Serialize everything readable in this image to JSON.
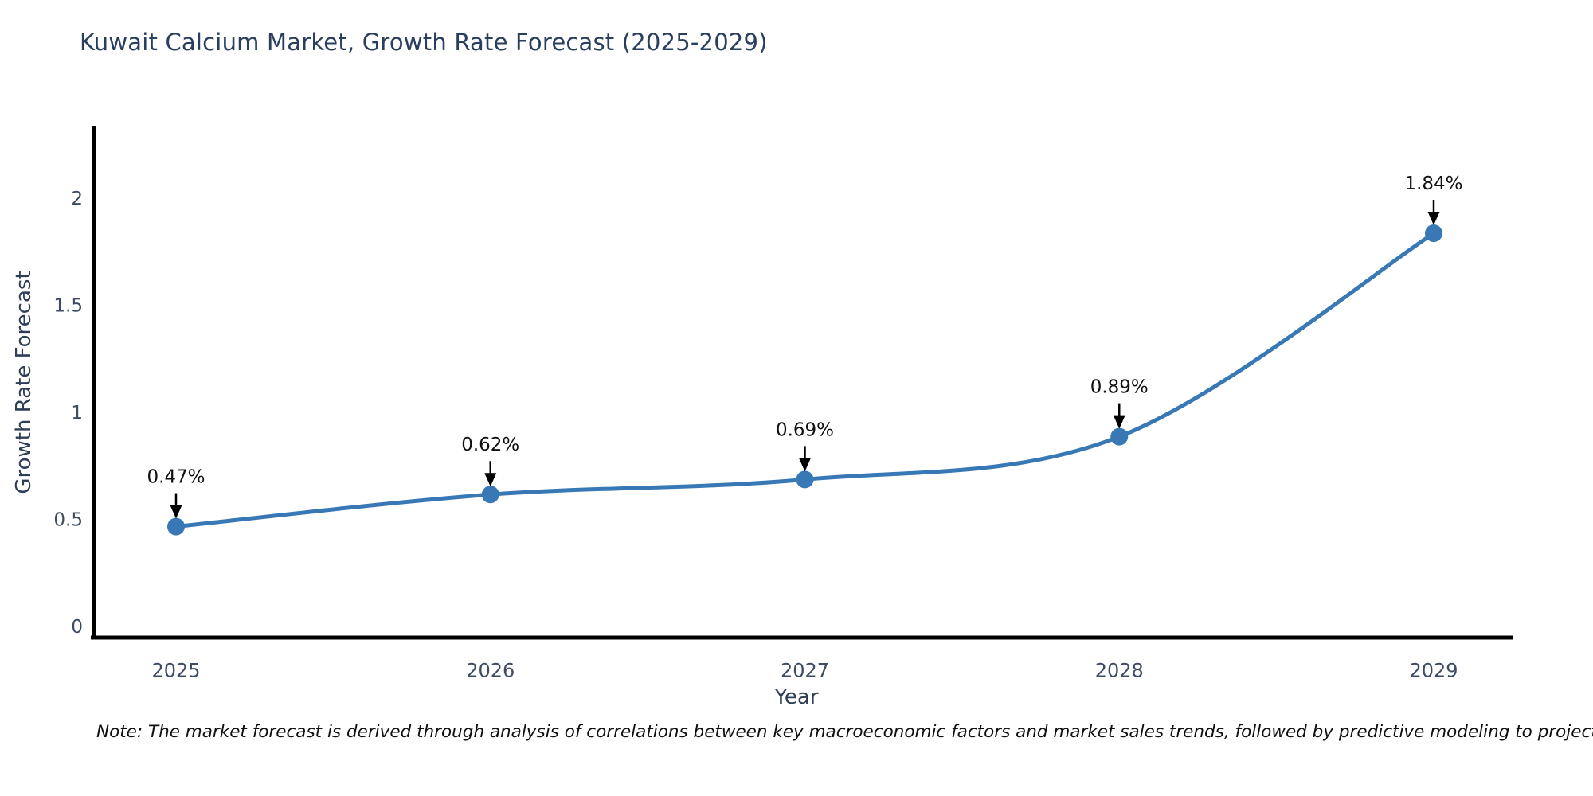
{
  "page": {
    "background_color": "#ffffff"
  },
  "chart_data": {
    "type": "line",
    "title": "Kuwait Calcium Market, Growth Rate Forecast (2025-2029)",
    "xlabel": "Year",
    "ylabel": "Growth Rate Forecast",
    "categories": [
      "2025",
      "2026",
      "2027",
      "2028",
      "2029"
    ],
    "series": [
      {
        "name": "Growth Rate Forecast",
        "values": [
          0.47,
          0.62,
          0.69,
          0.89,
          1.84
        ]
      }
    ],
    "data_labels": [
      "0.47%",
      "0.62%",
      "0.69%",
      "0.89%",
      "1.84%"
    ],
    "yticks": [
      "0",
      "0.5",
      "1",
      "1.5",
      "2"
    ],
    "ytick_values": [
      0,
      0.5,
      1,
      1.5,
      2
    ],
    "ylim": [
      -0.05,
      2.33
    ],
    "grid": false,
    "legend_position": "none",
    "line_shape": "spline",
    "colors": {
      "line": "#3878b4",
      "marker": "#3878b4",
      "annotation_text": "#111111",
      "annotation_arrow": "#000000",
      "axis_line": "#000000",
      "tick_label": "#3d4c63",
      "title": "#2a3f5f"
    },
    "note": "Note: The market forecast is derived through analysis of correlations between key macroeconomic factors and market sales trends, followed by predictive modeling to project future sales"
  }
}
